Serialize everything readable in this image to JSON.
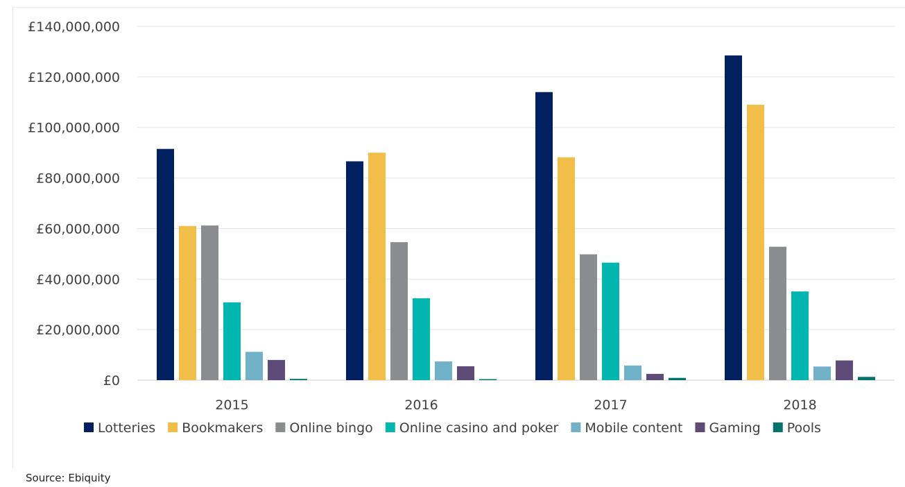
{
  "chart_data": {
    "type": "bar",
    "categories": [
      "2015",
      "2016",
      "2017",
      "2018"
    ],
    "series": [
      {
        "name": "Lotteries",
        "color": "#002060",
        "values": [
          91500000,
          86600000,
          114000000,
          128500000
        ]
      },
      {
        "name": "Bookmakers",
        "color": "#F0BE49",
        "values": [
          61000000,
          90000000,
          88200000,
          109000000
        ]
      },
      {
        "name": "Online bingo",
        "color": "#8A8C8F",
        "values": [
          61200000,
          54600000,
          49800000,
          52800000
        ]
      },
      {
        "name": "Online casino and poker",
        "color": "#00B6AE",
        "values": [
          30800000,
          32400000,
          46500000,
          35100000
        ]
      },
      {
        "name": "Mobile content",
        "color": "#71B2C9",
        "values": [
          11200000,
          7400000,
          5800000,
          5400000
        ]
      },
      {
        "name": "Gaming",
        "color": "#5F4B78",
        "values": [
          8000000,
          5500000,
          2500000,
          7800000
        ]
      },
      {
        "name": "Pools",
        "color": "#00736B",
        "values": [
          500000,
          400000,
          900000,
          1300000
        ]
      }
    ],
    "ylim": [
      0,
      140000000
    ],
    "yticks": [
      "£0",
      "£20,000,000",
      "£40,000,000",
      "£60,000,000",
      "£80,000,000",
      "£100,000,000",
      "£120,000,000",
      "£140,000,000"
    ],
    "grid": true,
    "legend_position": "bottom"
  },
  "source_note": "Source: Ebiquity"
}
